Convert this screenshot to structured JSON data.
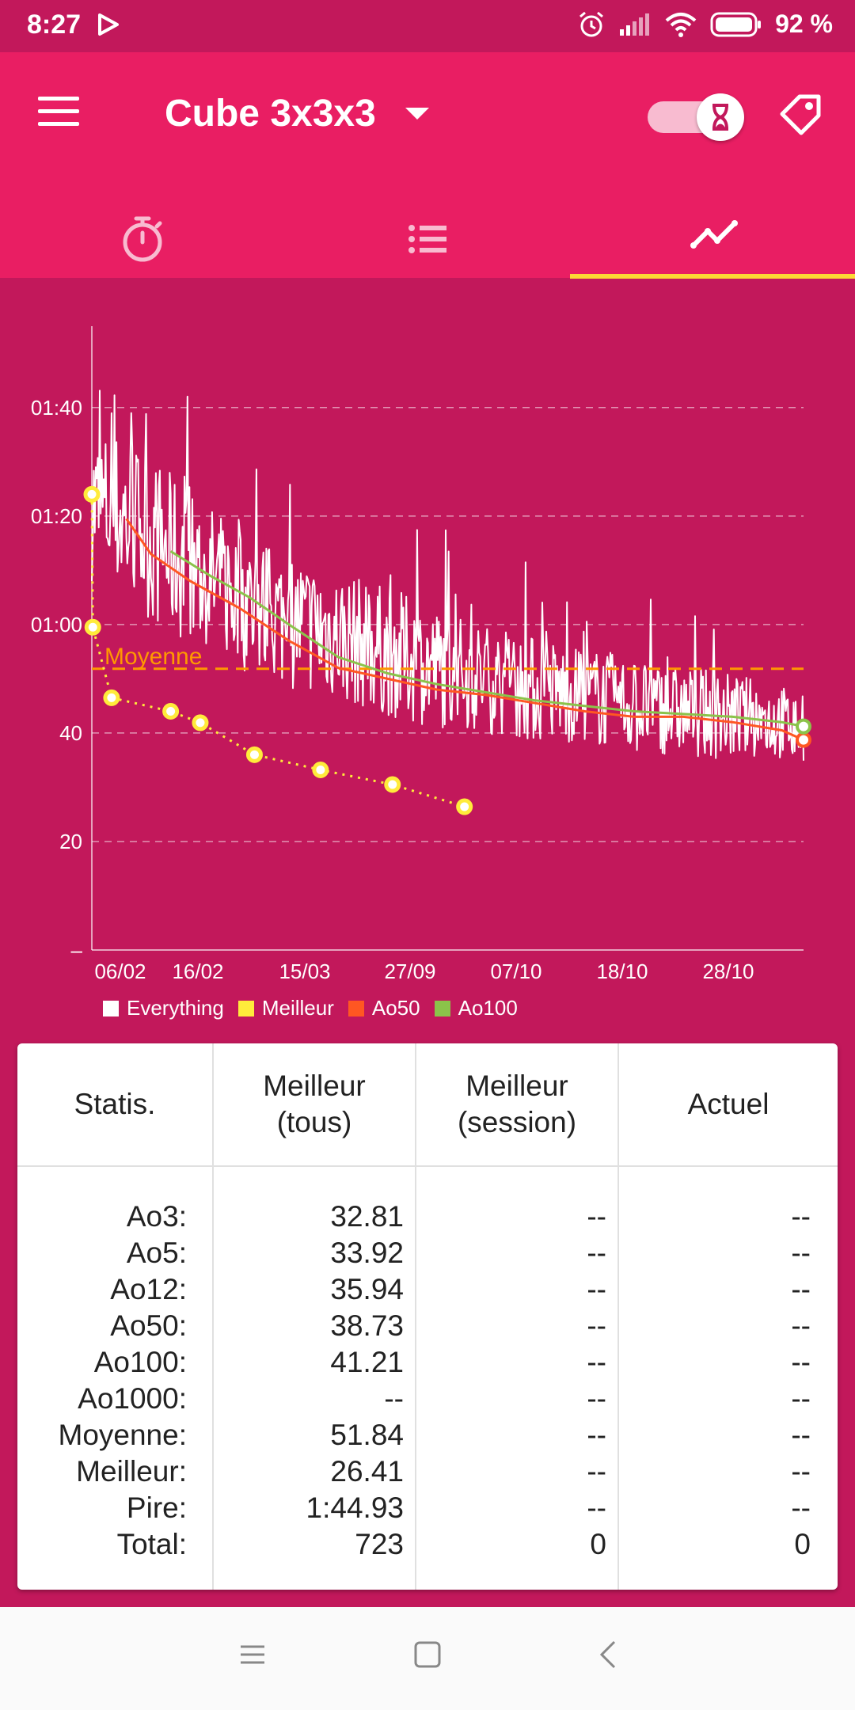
{
  "status_bar": {
    "time": "8:27",
    "battery": "92 %"
  },
  "app_bar": {
    "title": "Cube 3x3x3"
  },
  "tabs": [
    {
      "name": "timer"
    },
    {
      "name": "list"
    },
    {
      "name": "graph",
      "selected": true
    }
  ],
  "colors": {
    "primary": "#e91e63",
    "primary_dark": "#c2185b",
    "accent": "#fdd835",
    "best": "#ffeb3b",
    "ao50": "#ff5722",
    "ao100": "#8bc34a",
    "average": "#ff9800"
  },
  "chart_data": {
    "type": "line",
    "x_tick_labels": [
      "06/02",
      "16/02",
      "15/03",
      "27/09",
      "07/10",
      "18/10",
      "28/10"
    ],
    "y_tick_labels": [
      "–",
      "20",
      "40",
      "01:00",
      "01:20",
      "01:40"
    ],
    "y_unit": "seconds",
    "ylim": [
      0,
      115
    ],
    "y_ticks": [
      0,
      20,
      40,
      60,
      80,
      100
    ],
    "grid": true,
    "legend_position": "bottom",
    "average_line": {
      "label": "Moyenne",
      "value": 51.84
    },
    "series": [
      {
        "name": "Everything",
        "color": "#ffffff",
        "n_solves": 723,
        "envelope": {
          "x": [
            0,
            30,
            80,
            120,
            180,
            250,
            300,
            350,
            400,
            450,
            500,
            550,
            600,
            650,
            700,
            722
          ],
          "mean": [
            82,
            80,
            73,
            68,
            62,
            58,
            55,
            52,
            50,
            48,
            47,
            45,
            44,
            43,
            42,
            40
          ],
          "spread": [
            14,
            16,
            15,
            14,
            13,
            12,
            12,
            11,
            10,
            10,
            9,
            9,
            8,
            8,
            7,
            6
          ]
        }
      },
      {
        "name": "Meilleur",
        "color": "#ffeb3b",
        "points": [
          {
            "x": 0,
            "y": 84
          },
          {
            "x": 1,
            "y": 59.5
          },
          {
            "x": 20,
            "y": 46.5
          },
          {
            "x": 80,
            "y": 44
          },
          {
            "x": 110,
            "y": 41.9
          },
          {
            "x": 165,
            "y": 36
          },
          {
            "x": 232,
            "y": 33.2
          },
          {
            "x": 305,
            "y": 30.5
          },
          {
            "x": 378,
            "y": 26.41
          }
        ]
      },
      {
        "name": "Ao50",
        "color": "#ff5722",
        "points": [
          {
            "x": 35,
            "y": 79.5
          },
          {
            "x": 60,
            "y": 73
          },
          {
            "x": 100,
            "y": 68
          },
          {
            "x": 150,
            "y": 63
          },
          {
            "x": 200,
            "y": 57
          },
          {
            "x": 250,
            "y": 52
          },
          {
            "x": 300,
            "y": 50
          },
          {
            "x": 350,
            "y": 48
          },
          {
            "x": 400,
            "y": 47
          },
          {
            "x": 450,
            "y": 45.5
          },
          {
            "x": 500,
            "y": 44
          },
          {
            "x": 550,
            "y": 43
          },
          {
            "x": 600,
            "y": 43
          },
          {
            "x": 650,
            "y": 42
          },
          {
            "x": 700,
            "y": 40.5
          },
          {
            "x": 722,
            "y": 38.73
          }
        ]
      },
      {
        "name": "Ao100",
        "color": "#8bc34a",
        "points": [
          {
            "x": 80,
            "y": 73.5
          },
          {
            "x": 120,
            "y": 69
          },
          {
            "x": 160,
            "y": 65
          },
          {
            "x": 200,
            "y": 60
          },
          {
            "x": 250,
            "y": 54
          },
          {
            "x": 300,
            "y": 51
          },
          {
            "x": 350,
            "y": 49
          },
          {
            "x": 400,
            "y": 47.5
          },
          {
            "x": 450,
            "y": 46
          },
          {
            "x": 500,
            "y": 45
          },
          {
            "x": 550,
            "y": 44
          },
          {
            "x": 600,
            "y": 43.5
          },
          {
            "x": 650,
            "y": 43
          },
          {
            "x": 700,
            "y": 42
          },
          {
            "x": 722,
            "y": 41.21
          }
        ]
      }
    ]
  },
  "stats_table": {
    "headers": [
      "Statis.",
      "Meilleur\n(tous)",
      "Meilleur\n(session)",
      "Actuel"
    ],
    "labels": [
      "Ao3:",
      "Ao5:",
      "Ao12:",
      "Ao50:",
      "Ao100:",
      "Ao1000:",
      "Moyenne:",
      "Meilleur:",
      "Pire:",
      "Total:"
    ],
    "best_all": [
      "32.81",
      "33.92",
      "35.94",
      "38.73",
      "41.21",
      "--",
      "51.84",
      "26.41",
      "1:44.93",
      "723"
    ],
    "best_session": [
      "--",
      "--",
      "--",
      "--",
      "--",
      "--",
      "--",
      "--",
      "--",
      "0"
    ],
    "current": [
      "--",
      "--",
      "--",
      "--",
      "--",
      "--",
      "--",
      "--",
      "--",
      "0"
    ]
  }
}
